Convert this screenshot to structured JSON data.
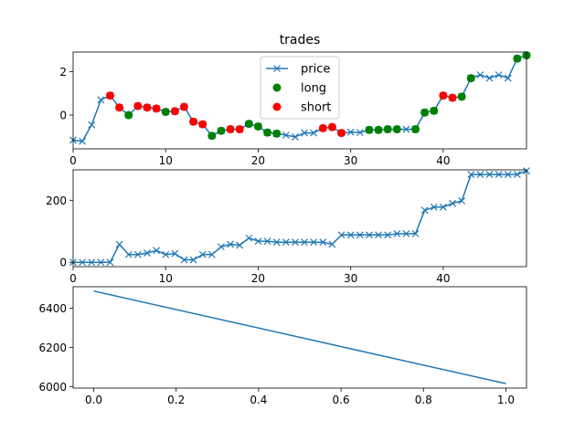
{
  "chart_data": [
    {
      "type": "line",
      "title": "trades",
      "xlabel": "",
      "ylabel": "",
      "xlim": [
        0,
        49
      ],
      "ylim": [
        -1.55,
        2.9
      ],
      "xticks": [
        0,
        10,
        20,
        30,
        40
      ],
      "yticks": [
        0,
        2
      ],
      "legend": {
        "placement": "top-center",
        "entries": [
          "price",
          "long",
          "short"
        ]
      },
      "series": [
        {
          "name": "price",
          "color": "#1f77b4",
          "marker": "x",
          "x": [
            0,
            1,
            2,
            3,
            4,
            5,
            6,
            7,
            8,
            9,
            10,
            11,
            12,
            13,
            14,
            15,
            16,
            17,
            18,
            19,
            20,
            21,
            22,
            23,
            24,
            25,
            26,
            27,
            28,
            29,
            30,
            31,
            32,
            33,
            34,
            35,
            36,
            37,
            38,
            39,
            40,
            41,
            42,
            43,
            44,
            45,
            46,
            47,
            48,
            49
          ],
          "y": [
            -1.15,
            -1.2,
            -0.45,
            0.7,
            0.9,
            0.35,
            0.0,
            0.42,
            0.35,
            0.3,
            0.15,
            0.18,
            0.38,
            -0.3,
            -0.42,
            -0.95,
            -0.72,
            -0.65,
            -0.65,
            -0.4,
            -0.52,
            -0.8,
            -0.85,
            -0.92,
            -1.0,
            -0.82,
            -0.82,
            -0.6,
            -0.55,
            -0.82,
            -0.78,
            -0.8,
            -0.68,
            -0.68,
            -0.65,
            -0.65,
            -0.65,
            -0.65,
            0.12,
            0.2,
            0.9,
            0.8,
            0.85,
            1.7,
            1.85,
            1.7,
            1.85,
            1.7,
            2.6,
            2.75
          ]
        },
        {
          "name": "long",
          "color": "#008000",
          "marker": "o",
          "x": [
            6,
            10,
            15,
            16,
            19,
            20,
            21,
            22,
            32,
            33,
            34,
            35,
            37,
            38,
            39,
            42,
            43,
            48,
            49
          ],
          "y": [
            0.0,
            0.15,
            -0.95,
            -0.72,
            -0.4,
            -0.52,
            -0.8,
            -0.85,
            -0.68,
            -0.68,
            -0.65,
            -0.65,
            -0.65,
            0.12,
            0.2,
            0.85,
            1.7,
            2.6,
            2.75
          ]
        },
        {
          "name": "short",
          "color": "#ff0000",
          "marker": "o",
          "x": [
            4,
            5,
            7,
            8,
            9,
            11,
            12,
            13,
            14,
            17,
            18,
            27,
            28,
            29,
            40,
            41
          ],
          "y": [
            0.9,
            0.35,
            0.42,
            0.35,
            0.3,
            0.18,
            0.38,
            -0.3,
            -0.42,
            -0.65,
            -0.65,
            -0.6,
            -0.55,
            -0.82,
            0.9,
            0.8
          ]
        }
      ]
    },
    {
      "type": "line",
      "title": "",
      "xlabel": "",
      "ylabel": "",
      "xlim": [
        0,
        49
      ],
      "ylim": [
        -14,
        298
      ],
      "xticks": [
        0,
        10,
        20,
        30,
        40
      ],
      "yticks": [
        0,
        200
      ],
      "series": [
        {
          "name": "",
          "color": "#1f77b4",
          "marker": "x",
          "x": [
            0,
            1,
            2,
            3,
            4,
            5,
            6,
            7,
            8,
            9,
            10,
            11,
            12,
            13,
            14,
            15,
            16,
            17,
            18,
            19,
            20,
            21,
            22,
            23,
            24,
            25,
            26,
            27,
            28,
            29,
            30,
            31,
            32,
            33,
            34,
            35,
            36,
            37,
            38,
            39,
            40,
            41,
            42,
            43,
            44,
            45,
            46,
            47,
            48,
            49
          ],
          "y": [
            0,
            0,
            0,
            0,
            0,
            58,
            25,
            25,
            30,
            38,
            25,
            28,
            8,
            8,
            25,
            25,
            50,
            58,
            55,
            78,
            68,
            68,
            65,
            65,
            65,
            65,
            65,
            65,
            58,
            88,
            88,
            88,
            88,
            88,
            88,
            92,
            92,
            92,
            168,
            178,
            178,
            190,
            198,
            283,
            283,
            283,
            283,
            283,
            283,
            295
          ]
        }
      ]
    },
    {
      "type": "line",
      "title": "",
      "xlabel": "",
      "ylabel": "",
      "xlim": [
        -0.05,
        1.05
      ],
      "ylim": [
        5992,
        6510
      ],
      "xticks": [
        0.0,
        0.2,
        0.4,
        0.6,
        0.8,
        1.0
      ],
      "xtick_labels": [
        "0.0",
        "0.2",
        "0.4",
        "0.6",
        "0.8",
        "1.0"
      ],
      "yticks": [
        6000,
        6200,
        6400
      ],
      "series": [
        {
          "name": "",
          "color": "#1f77b4",
          "marker": "",
          "x": [
            0,
            1
          ],
          "y": [
            6488,
            6015
          ]
        }
      ]
    }
  ]
}
